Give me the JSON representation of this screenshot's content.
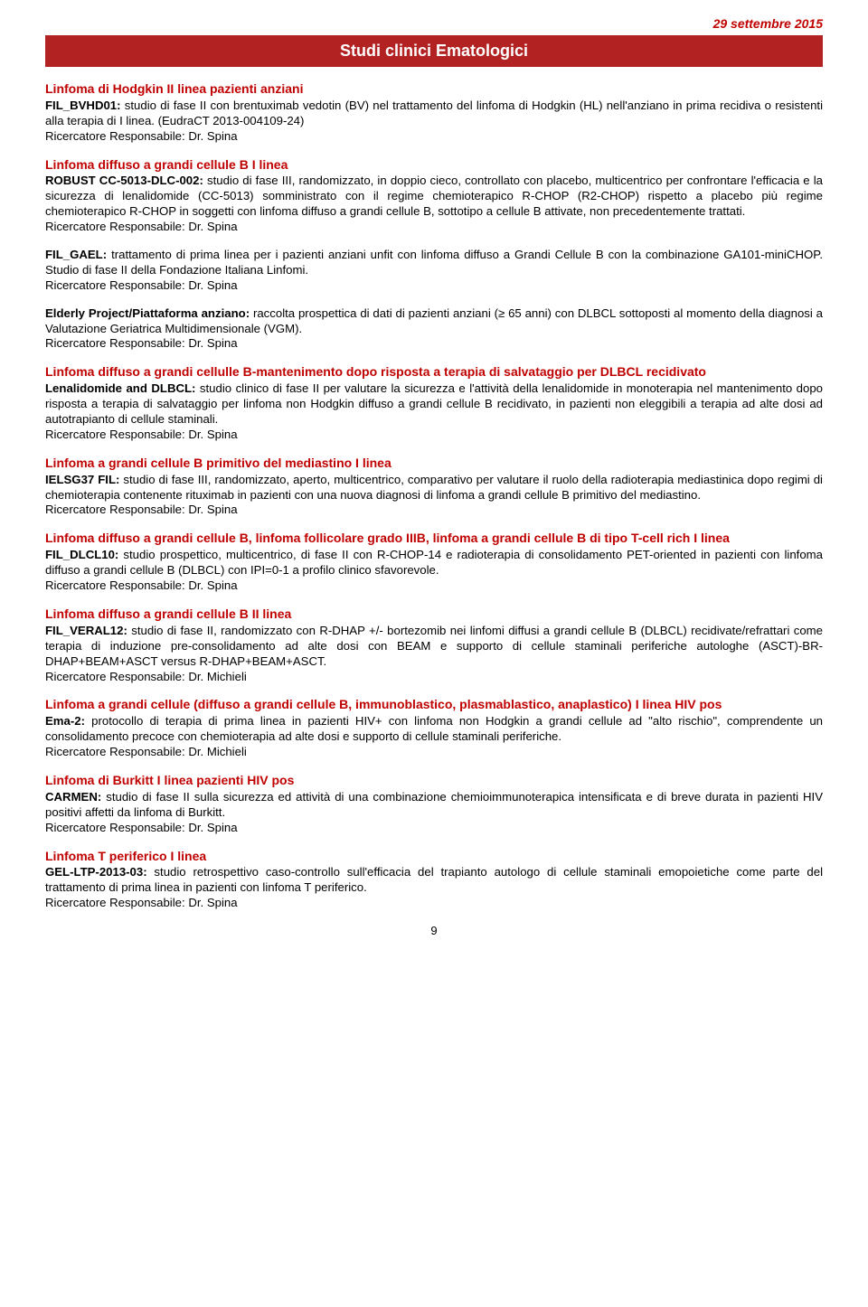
{
  "date": "29 settembre 2015",
  "title": "Studi clinici Ematologici",
  "investigator_label": "Ricercatore Responsabile: Dr. Spina",
  "investigator_label_michieli": "Ricercatore Responsabile: Dr. Michieli",
  "page_number": "9",
  "sections": [
    {
      "heading": "Linfoma di Hodgkin II linea pazienti anziani",
      "lead": "FIL_BVHD01:",
      "body": " studio di fase II con brentuximab vedotin (BV) nel trattamento del linfoma di Hodgkin (HL) nell'anziano in prima recidiva o resistenti alla terapia di I linea. (EudraCT 2013-004109-24)",
      "inv": "spina"
    },
    {
      "heading": "Linfoma diffuso a grandi cellule B I linea",
      "lead": "ROBUST CC-5013-DLC-002:",
      "body": " studio di fase III, randomizzato, in doppio cieco, controllato con placebo, multicentrico per confrontare l'efficacia e la sicurezza di lenalidomide (CC-5013) somministrato con il regime chemioterapico R-CHOP (R2-CHOP) rispetto a placebo più regime chemioterapico R-CHOP in soggetti con linfoma diffuso a grandi cellule B, sottotipo a cellule B attivate, non precedentemente trattati.",
      "inv": "spina"
    },
    {
      "heading": "",
      "lead": "FIL_GAEL:",
      "body": " trattamento di prima linea per i pazienti anziani unfit con linfoma diffuso a Grandi Cellule B con la combinazione GA101-miniCHOP. Studio di fase II della Fondazione Italiana Linfomi.",
      "inv": "spina"
    },
    {
      "heading": "",
      "lead": "Elderly Project/Piattaforma anziano:",
      "body": " raccolta prospettica di dati di pazienti anziani (≥ 65 anni) con DLBCL sottoposti al momento della diagnosi a Valutazione Geriatrica Multidimensionale (VGM).",
      "inv": "spina"
    },
    {
      "heading": "Linfoma diffuso a grandi cellulle B-mantenimento dopo risposta a terapia di salvataggio per DLBCL recidivato",
      "lead": "Lenalidomide and DLBCL:",
      "body": " studio clinico di fase II per valutare la sicurezza e l'attività della lenalidomide in monoterapia nel mantenimento dopo risposta a terapia di salvataggio per linfoma non Hodgkin diffuso a grandi cellule B recidivato, in pazienti non eleggibili a terapia ad alte dosi ad autotrapianto di cellule staminali.",
      "inv": "spina"
    },
    {
      "heading": "Linfoma a grandi cellule B primitivo del mediastino I linea",
      "lead": "IELSG37 FIL:",
      "body": " studio di fase III, randomizzato, aperto, multicentrico, comparativo per valutare il ruolo della radioterapia mediastinica dopo regimi di chemioterapia contenente rituximab in pazienti con una nuova diagnosi di linfoma a grandi cellule B primitivo del mediastino.",
      "inv": "spina"
    },
    {
      "heading": "Linfoma diffuso a grandi cellule B, linfoma follicolare grado IIIB, linfoma a grandi cellule B di tipo T-cell rich I linea",
      "lead": "FIL_DLCL10:",
      "body": " studio prospettico, multicentrico, di fase II con R-CHOP-14 e radioterapia di consolidamento PET-oriented in pazienti con linfoma diffuso a grandi cellule B (DLBCL) con IPI=0-1 a profilo clinico sfavorevole.",
      "inv": "spina"
    },
    {
      "heading": "Linfoma diffuso a grandi cellule B II linea",
      "lead": "FIL_VERAL12:",
      "body": " studio di fase II, randomizzato con R-DHAP +/- bortezomib nei linfomi diffusi a grandi cellule B (DLBCL) recidivate/refrattari come terapia di induzione pre-consolidamento ad alte dosi con BEAM e supporto di cellule staminali periferiche autologhe (ASCT)-BR-DHAP+BEAM+ASCT versus R-DHAP+BEAM+ASCT.",
      "inv": "michieli"
    },
    {
      "heading": "Linfoma a grandi cellule (diffuso a grandi cellule B, immunoblastico, plasmablastico, anaplastico) I linea HIV pos",
      "lead": "Ema-2:",
      "body": " protocollo di terapia di prima linea in pazienti HIV+ con linfoma non Hodgkin a grandi cellule ad \"alto rischio\", comprendente un consolidamento precoce con chemioterapia ad alte dosi e supporto di cellule staminali periferiche.",
      "inv": "michieli"
    },
    {
      "heading": "Linfoma di Burkitt I linea pazienti HIV pos",
      "lead": "CARMEN:",
      "body": " studio di fase II sulla sicurezza ed attività di una combinazione chemioimmunoterapica intensificata e di breve durata in pazienti HIV positivi affetti da linfoma di Burkitt.",
      "inv": "spina"
    },
    {
      "heading": "Linfoma T periferico I linea",
      "lead": "GEL-LTP-2013-03:",
      "body": " studio retrospettivo caso-controllo sull'efficacia del trapianto autologo di cellule staminali emopoietiche come parte del trattamento di prima linea in pazienti con linfoma T periferico.",
      "inv": "spina"
    }
  ]
}
